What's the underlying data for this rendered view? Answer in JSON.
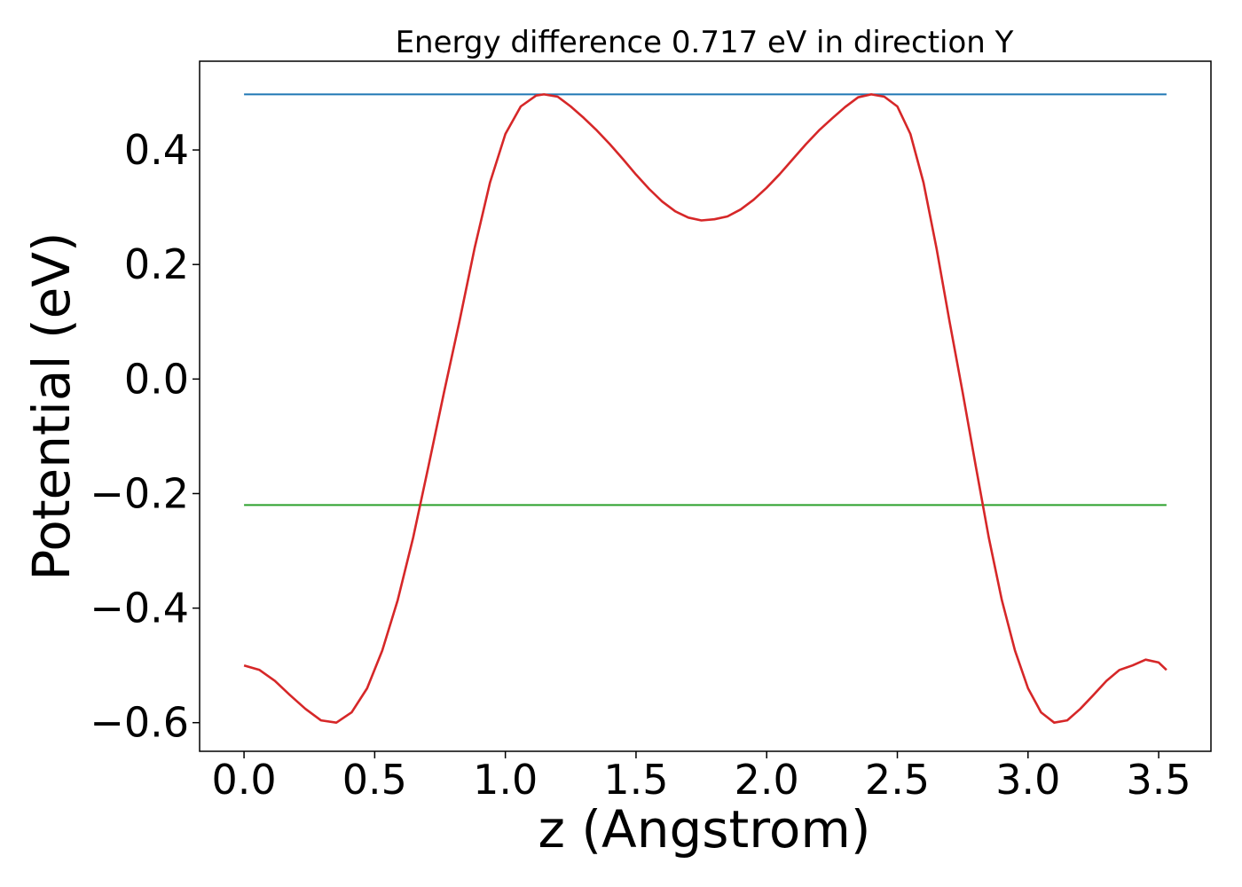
{
  "chart_data": {
    "type": "line",
    "title": "Energy difference 0.717 eV in direction Y",
    "xlabel": "z (Angstrom)",
    "ylabel": "Potential (eV)",
    "xlim": [
      -0.17,
      3.7
    ],
    "ylim": [
      -0.65,
      0.555
    ],
    "xticks": [
      0.0,
      0.5,
      1.0,
      1.5,
      2.0,
      2.5,
      3.0,
      3.5
    ],
    "xtick_labels": [
      "0.0",
      "0.5",
      "1.0",
      "1.5",
      "2.0",
      "2.5",
      "3.0",
      "3.5"
    ],
    "yticks": [
      -0.6,
      -0.4,
      -0.2,
      0.0,
      0.2,
      0.4
    ],
    "ytick_labels": [
      "−0.6",
      "−0.4",
      "−0.2",
      "0.0",
      "0.2",
      "0.4"
    ],
    "grid": false,
    "series": [
      {
        "color": "#1f77b4",
        "x": [
          0.0,
          3.53
        ],
        "y": [
          0.497,
          0.497
        ]
      },
      {
        "color": "#2ca02c",
        "x": [
          0.0,
          3.53
        ],
        "y": [
          -0.22,
          -0.22
        ]
      },
      {
        "color": "#d62728",
        "x": [
          0.0,
          0.059,
          0.118,
          0.176,
          0.235,
          0.294,
          0.353,
          0.412,
          0.471,
          0.529,
          0.588,
          0.647,
          0.706,
          0.765,
          0.824,
          0.882,
          0.941,
          1.0,
          1.059,
          1.118,
          1.148,
          1.2,
          1.25,
          1.3,
          1.35,
          1.4,
          1.45,
          1.5,
          1.55,
          1.6,
          1.65,
          1.7,
          1.75,
          1.8,
          1.85,
          1.9,
          1.95,
          2.0,
          2.05,
          2.1,
          2.15,
          2.2,
          2.25,
          2.3,
          2.35,
          2.4,
          2.45,
          2.5,
          2.55,
          2.6,
          2.65,
          2.7,
          2.75,
          2.8,
          2.85,
          2.9,
          2.95,
          3.0,
          3.05,
          3.1,
          3.15,
          3.2,
          3.25,
          3.3,
          3.35,
          3.4,
          3.45,
          3.5,
          3.53
        ],
        "y": [
          -0.5,
          -0.508,
          -0.527,
          -0.552,
          -0.576,
          -0.596,
          -0.6,
          -0.582,
          -0.54,
          -0.474,
          -0.386,
          -0.277,
          -0.152,
          -0.024,
          0.1,
          0.228,
          0.343,
          0.428,
          0.476,
          0.495,
          0.497,
          0.493,
          0.476,
          0.456,
          0.434,
          0.41,
          0.384,
          0.357,
          0.332,
          0.31,
          0.293,
          0.282,
          0.277,
          0.279,
          0.284,
          0.296,
          0.313,
          0.334,
          0.358,
          0.384,
          0.41,
          0.434,
          0.455,
          0.475,
          0.492,
          0.497,
          0.493,
          0.476,
          0.428,
          0.343,
          0.228,
          0.1,
          -0.024,
          -0.152,
          -0.277,
          -0.386,
          -0.474,
          -0.54,
          -0.582,
          -0.6,
          -0.596,
          -0.576,
          -0.552,
          -0.527,
          -0.508,
          -0.5,
          -0.49,
          -0.495,
          -0.508
        ]
      }
    ]
  }
}
